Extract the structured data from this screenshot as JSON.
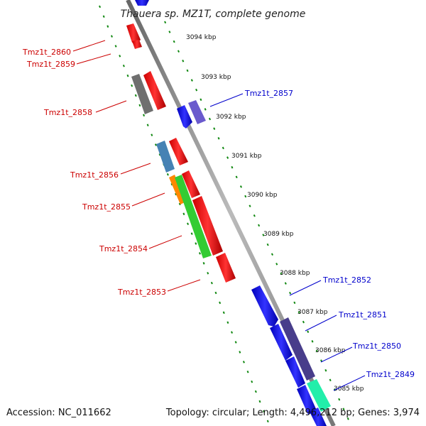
{
  "title": "Thauera sp. MZ1T, complete genome",
  "footer": {
    "accession": "Accession: NC_011662",
    "summary": "Topology: circular; Length: 4,496,212 bp; Genes: 3,974"
  },
  "kbp_labels": [
    "3094 kbp",
    "3093 kbp",
    "3092 kbp",
    "3091 kbp",
    "3090 kbp",
    "3089 kbp",
    "3088 kbp",
    "3087 kbp",
    "3086 kbp",
    "3085 kbp"
  ],
  "genes_reverse": [
    {
      "label": "Tmz1t_2860",
      "color": "#cc0000"
    },
    {
      "label": "Tmz1t_2859",
      "color": "#cc0000"
    },
    {
      "label": "Tmz1t_2858",
      "color": "#cc0000"
    },
    {
      "label": "Tmz1t_2856",
      "color": "#cc0000"
    },
    {
      "label": "Tmz1t_2855",
      "color": "#cc0000"
    },
    {
      "label": "Tmz1t_2854",
      "color": "#cc0000"
    },
    {
      "label": "Tmz1t_2853",
      "color": "#cc0000"
    }
  ],
  "genes_forward": [
    {
      "label": "Tmz1t_2857",
      "color": "#0000cc"
    },
    {
      "label": "Tmz1t_2852",
      "color": "#0000cc"
    },
    {
      "label": "Tmz1t_2851",
      "color": "#0000cc"
    },
    {
      "label": "Tmz1t_2850",
      "color": "#0000cc"
    },
    {
      "label": "Tmz1t_2849",
      "color": "#0000cc"
    }
  ],
  "colors": {
    "backbone": "#888888",
    "tick_green": "#118811",
    "red": "#ee1111",
    "blue": "#1111ee",
    "gray": "#777777",
    "steel_blue": "#4682b4",
    "orange": "#ff8800",
    "green": "#33cc33",
    "slate": "#7b68ee",
    "dark_slate": "#483d8b",
    "teal": "#22eeaa"
  }
}
